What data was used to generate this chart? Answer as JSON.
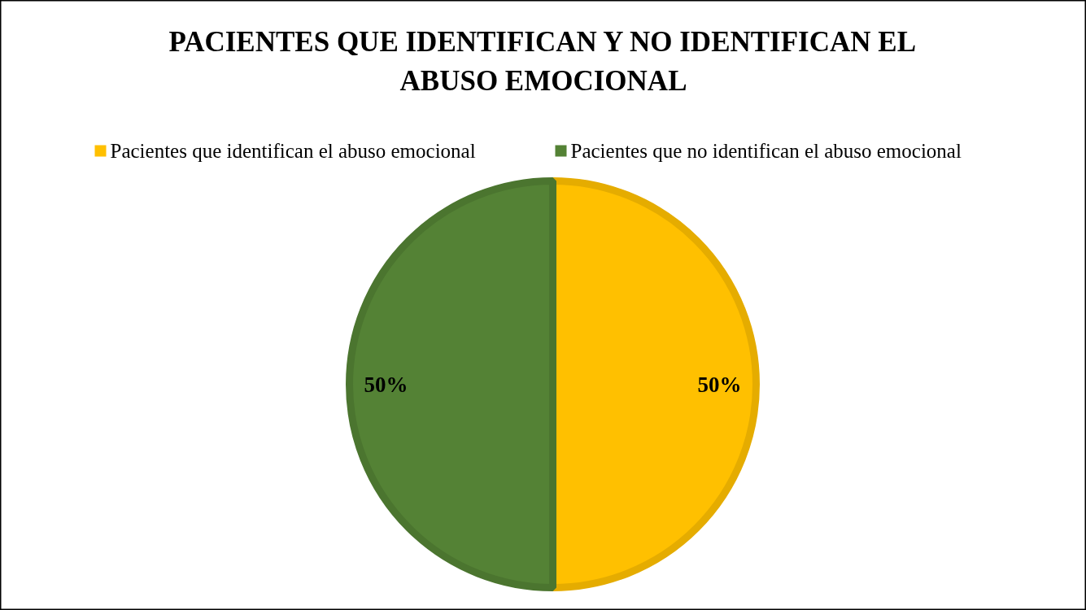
{
  "chart_data": {
    "type": "pie",
    "title": "PACIENTES QUE IDENTIFICAN Y NO IDENTIFICAN EL\nABUSO EMOCIONAL",
    "categories": [
      "Pacientes que identifican el abuso emocional",
      "Pacientes que no identifican el abuso emocional"
    ],
    "values": [
      50,
      50
    ],
    "colors": [
      "#ffc000",
      "#548235"
    ],
    "value_labels": [
      "50%",
      "50%"
    ],
    "legend": "top"
  }
}
